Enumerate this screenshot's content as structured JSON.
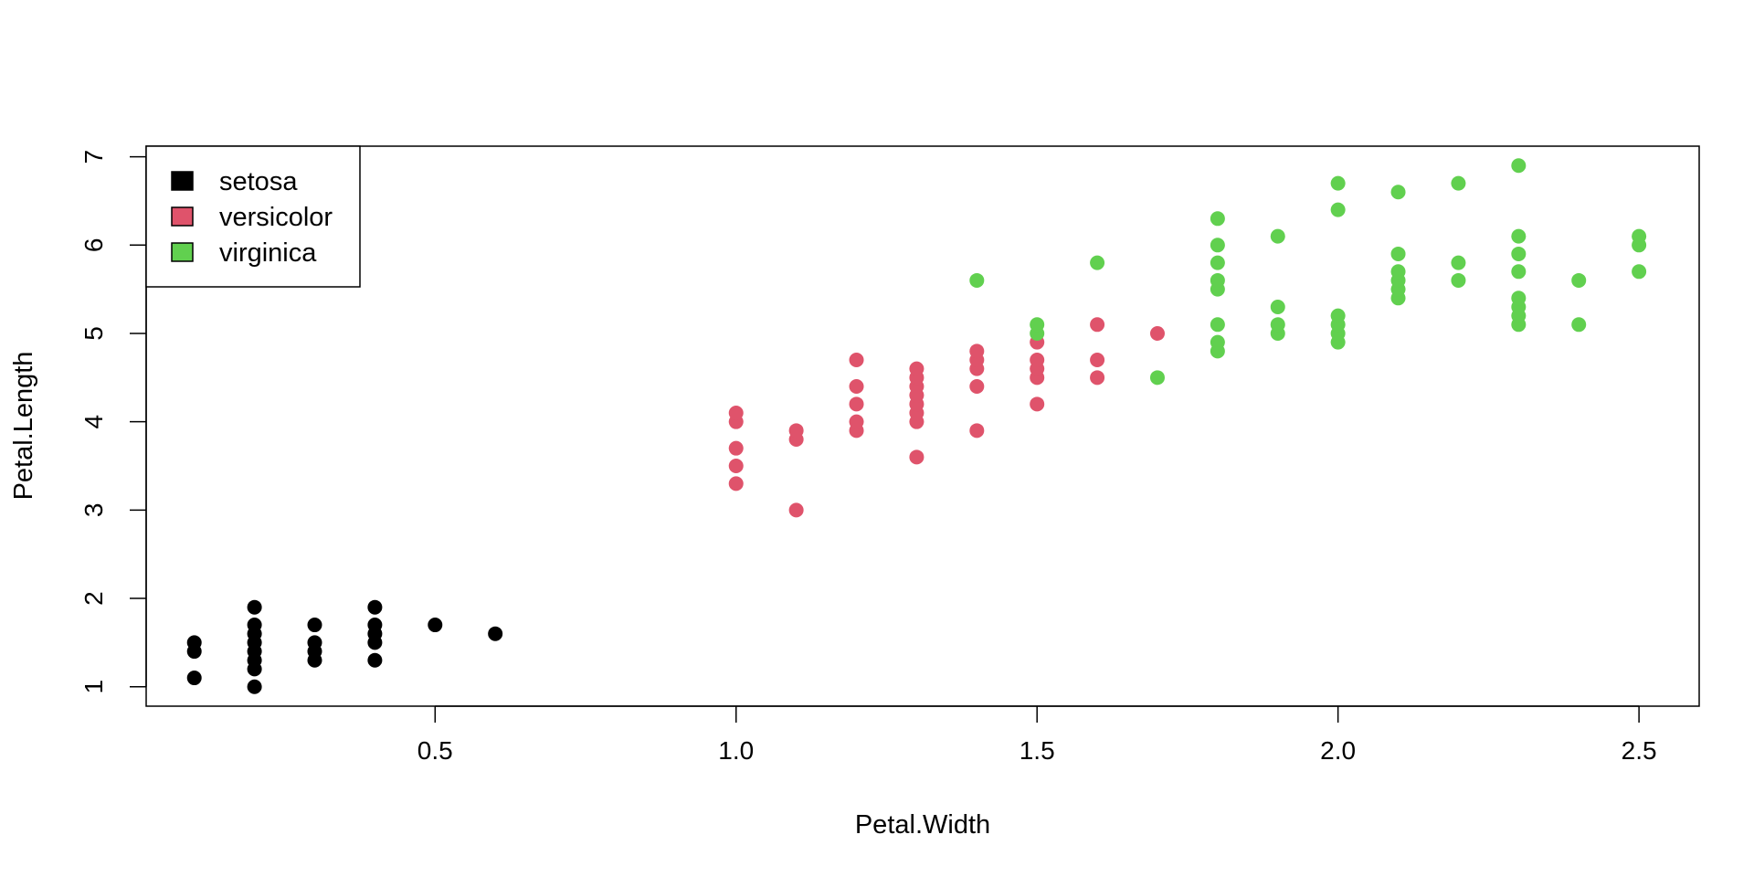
{
  "chart_data": {
    "type": "scatter",
    "xlabel": "Petal.Width",
    "ylabel": "Petal.Length",
    "xlim": [
      0.02,
      2.6
    ],
    "ylim": [
      0.78,
      7.12
    ],
    "x_ticks": [
      "0.5",
      "1.0",
      "1.5",
      "2.0",
      "2.5"
    ],
    "y_ticks": [
      "1",
      "2",
      "3",
      "4",
      "5",
      "6",
      "7"
    ],
    "grid": false,
    "legend_position": "top-left",
    "legend": [
      {
        "name": "setosa",
        "color": "#000000"
      },
      {
        "name": "versicolor",
        "color": "#DF536B"
      },
      {
        "name": "virginica",
        "color": "#61D04F"
      }
    ],
    "series": [
      {
        "name": "setosa",
        "color": "#000000",
        "points": [
          [
            0.1,
            1.1
          ],
          [
            0.1,
            1.4
          ],
          [
            0.1,
            1.5
          ],
          [
            0.2,
            1.0
          ],
          [
            0.2,
            1.2
          ],
          [
            0.2,
            1.3
          ],
          [
            0.2,
            1.4
          ],
          [
            0.2,
            1.5
          ],
          [
            0.2,
            1.6
          ],
          [
            0.2,
            1.7
          ],
          [
            0.2,
            1.9
          ],
          [
            0.3,
            1.3
          ],
          [
            0.3,
            1.4
          ],
          [
            0.3,
            1.5
          ],
          [
            0.3,
            1.7
          ],
          [
            0.4,
            1.3
          ],
          [
            0.4,
            1.5
          ],
          [
            0.4,
            1.6
          ],
          [
            0.4,
            1.7
          ],
          [
            0.4,
            1.9
          ],
          [
            0.5,
            1.7
          ],
          [
            0.6,
            1.6
          ]
        ]
      },
      {
        "name": "versicolor",
        "color": "#DF536B",
        "points": [
          [
            1.0,
            3.3
          ],
          [
            1.0,
            3.5
          ],
          [
            1.0,
            3.7
          ],
          [
            1.0,
            4.0
          ],
          [
            1.0,
            4.1
          ],
          [
            1.1,
            3.0
          ],
          [
            1.1,
            3.8
          ],
          [
            1.1,
            3.9
          ],
          [
            1.2,
            3.9
          ],
          [
            1.2,
            4.0
          ],
          [
            1.2,
            4.2
          ],
          [
            1.2,
            4.4
          ],
          [
            1.2,
            4.7
          ],
          [
            1.3,
            3.6
          ],
          [
            1.3,
            4.0
          ],
          [
            1.3,
            4.1
          ],
          [
            1.3,
            4.2
          ],
          [
            1.3,
            4.3
          ],
          [
            1.3,
            4.4
          ],
          [
            1.3,
            4.5
          ],
          [
            1.3,
            4.6
          ],
          [
            1.4,
            3.9
          ],
          [
            1.4,
            4.4
          ],
          [
            1.4,
            4.6
          ],
          [
            1.4,
            4.7
          ],
          [
            1.4,
            4.8
          ],
          [
            1.5,
            4.2
          ],
          [
            1.5,
            4.5
          ],
          [
            1.5,
            4.6
          ],
          [
            1.5,
            4.7
          ],
          [
            1.5,
            4.9
          ],
          [
            1.6,
            4.5
          ],
          [
            1.6,
            4.7
          ],
          [
            1.6,
            5.1
          ],
          [
            1.7,
            5.0
          ]
        ]
      },
      {
        "name": "virginica",
        "color": "#61D04F",
        "points": [
          [
            1.4,
            5.6
          ],
          [
            1.5,
            5.0
          ],
          [
            1.5,
            5.1
          ],
          [
            1.6,
            5.8
          ],
          [
            1.7,
            4.5
          ],
          [
            1.8,
            4.8
          ],
          [
            1.8,
            4.9
          ],
          [
            1.8,
            5.1
          ],
          [
            1.8,
            5.5
          ],
          [
            1.8,
            5.6
          ],
          [
            1.8,
            5.8
          ],
          [
            1.8,
            6.0
          ],
          [
            1.8,
            6.3
          ],
          [
            1.9,
            5.0
          ],
          [
            1.9,
            5.1
          ],
          [
            1.9,
            5.3
          ],
          [
            1.9,
            6.1
          ],
          [
            2.0,
            4.9
          ],
          [
            2.0,
            5.0
          ],
          [
            2.0,
            5.1
          ],
          [
            2.0,
            5.2
          ],
          [
            2.0,
            6.4
          ],
          [
            2.0,
            6.7
          ],
          [
            2.1,
            5.4
          ],
          [
            2.1,
            5.5
          ],
          [
            2.1,
            5.6
          ],
          [
            2.1,
            5.7
          ],
          [
            2.1,
            5.9
          ],
          [
            2.1,
            6.6
          ],
          [
            2.2,
            5.6
          ],
          [
            2.2,
            5.8
          ],
          [
            2.2,
            6.7
          ],
          [
            2.3,
            5.1
          ],
          [
            2.3,
            5.2
          ],
          [
            2.3,
            5.3
          ],
          [
            2.3,
            5.4
          ],
          [
            2.3,
            5.7
          ],
          [
            2.3,
            5.9
          ],
          [
            2.3,
            6.1
          ],
          [
            2.3,
            6.9
          ],
          [
            2.4,
            5.1
          ],
          [
            2.4,
            5.6
          ],
          [
            2.5,
            5.7
          ],
          [
            2.5,
            6.0
          ],
          [
            2.5,
            6.1
          ]
        ]
      }
    ]
  }
}
